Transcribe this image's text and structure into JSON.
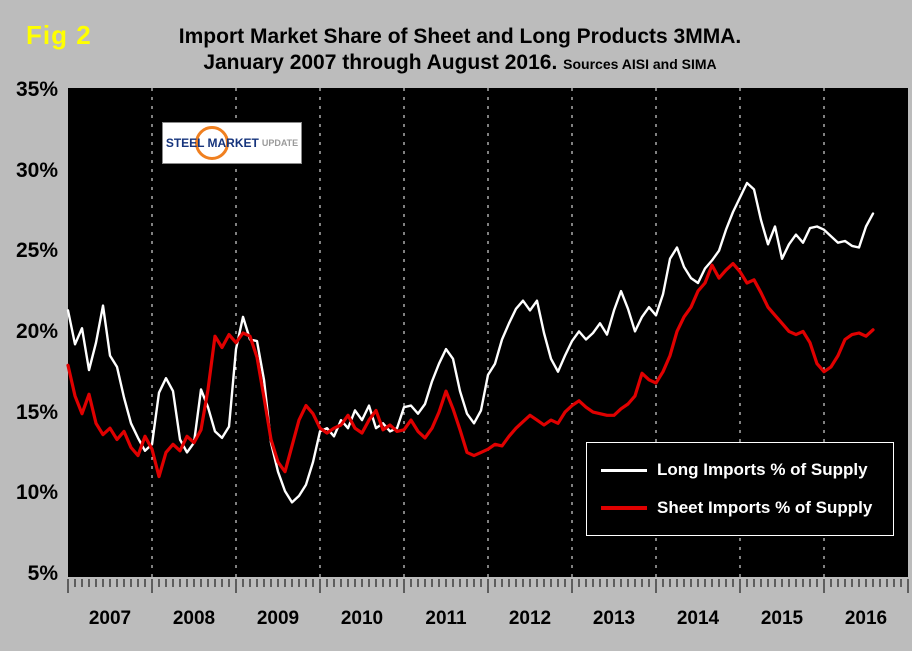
{
  "header": {
    "fig_label": "Fig 2",
    "title_line1": "Import Market Share of Sheet and Long Products 3MMA.",
    "title_line2": "January 2007 through August 2016.",
    "sources": "Sources AISI and SIMA"
  },
  "logo": {
    "word1": "STEEL",
    "word2": "MARKET",
    "word3": "UPDATE"
  },
  "legend": {
    "position": "inside-bottom-right",
    "items": [
      {
        "label": "Long Imports % of Supply",
        "color": "#ffffff"
      },
      {
        "label": "Sheet Imports % of Supply",
        "color": "#e00000"
      }
    ]
  },
  "chart_data": {
    "type": "line",
    "title": "Import Market Share of Sheet and Long Products 3MMA. January 2007 through August 2016. Sources AISI and SIMA",
    "x_unit": "month",
    "x_start": "2007-01",
    "x_end": "2016-08",
    "n_points": 116,
    "x_axis_months_total": 120,
    "x_tick_labels": [
      "2007",
      "2008",
      "2009",
      "2010",
      "2011",
      "2012",
      "2013",
      "2014",
      "2015",
      "2016"
    ],
    "y_ticks": [
      35,
      30,
      25,
      20,
      15,
      10,
      5
    ],
    "y_tick_suffix": "%",
    "ylim": [
      5,
      35
    ],
    "grid": "vertical-dashed-yearly",
    "plot_bg": "#000000",
    "page_bg": "#bcbcbc",
    "gridline_color": "#ffffff",
    "series": [
      {
        "id": "long-imports-line",
        "name": "Long Imports % of Supply",
        "color": "#ffffff",
        "stroke_width": 2.4,
        "values": [
          21.4,
          19.3,
          20.3,
          17.7,
          19.4,
          21.7,
          18.6,
          17.9,
          16.0,
          14.4,
          13.5,
          12.7,
          13.1,
          16.3,
          17.2,
          16.4,
          13.4,
          12.6,
          13.2,
          16.5,
          15.4,
          13.9,
          13.5,
          14.2,
          19.0,
          21.0,
          19.6,
          19.5,
          17.1,
          13.2,
          11.4,
          10.2,
          9.5,
          9.9,
          10.6,
          12.0,
          13.9,
          14.1,
          13.6,
          14.6,
          14.1,
          15.2,
          14.6,
          15.5,
          14.1,
          14.4,
          13.9,
          14.1,
          15.4,
          15.5,
          15.0,
          15.6,
          17.0,
          18.1,
          19.0,
          18.4,
          16.4,
          15.0,
          14.4,
          15.2,
          17.4,
          18.1,
          19.6,
          20.6,
          21.5,
          22.0,
          21.4,
          22.0,
          20.0,
          18.4,
          17.6,
          18.6,
          19.5,
          20.1,
          19.6,
          20.0,
          20.6,
          19.9,
          21.4,
          22.6,
          21.5,
          20.1,
          21.0,
          21.6,
          21.1,
          22.4,
          24.6,
          25.3,
          24.1,
          23.4,
          23.1,
          24.0,
          24.5,
          25.1,
          26.4,
          27.5,
          28.4,
          29.3,
          28.9,
          27.0,
          25.5,
          26.6,
          24.6,
          25.5,
          26.1,
          25.6,
          26.5,
          26.6,
          26.4,
          26.0,
          25.6,
          25.7,
          25.4,
          25.3,
          26.6,
          27.4
        ]
      },
      {
        "id": "sheet-imports-line",
        "name": "Sheet Imports % of Supply",
        "color": "#e00000",
        "stroke_width": 3.2,
        "values": [
          18.0,
          16.1,
          15.0,
          16.2,
          14.4,
          13.7,
          14.1,
          13.4,
          13.9,
          12.9,
          12.4,
          13.6,
          12.8,
          11.1,
          12.6,
          13.1,
          12.7,
          13.6,
          13.2,
          14.0,
          16.5,
          19.8,
          19.1,
          19.9,
          19.4,
          20.0,
          19.8,
          18.5,
          16.0,
          13.4,
          12.0,
          11.4,
          13.0,
          14.6,
          15.5,
          15.0,
          14.1,
          13.8,
          14.1,
          14.3,
          14.9,
          14.1,
          13.8,
          14.6,
          15.2,
          14.0,
          14.3,
          13.9,
          14.0,
          14.6,
          13.9,
          13.5,
          14.1,
          15.1,
          16.4,
          15.3,
          14.0,
          12.6,
          12.4,
          12.6,
          12.8,
          13.1,
          13.0,
          13.6,
          14.1,
          14.5,
          14.9,
          14.6,
          14.3,
          14.6,
          14.4,
          15.1,
          15.5,
          15.8,
          15.4,
          15.1,
          15.0,
          14.9,
          14.9,
          15.3,
          15.6,
          16.1,
          17.5,
          17.1,
          16.9,
          17.6,
          18.6,
          20.1,
          21.0,
          21.6,
          22.6,
          23.1,
          24.2,
          23.4,
          23.9,
          24.3,
          23.8,
          23.1,
          23.3,
          22.5,
          21.6,
          21.1,
          20.6,
          20.1,
          19.9,
          20.1,
          19.4,
          18.1,
          17.6,
          17.9,
          18.6,
          19.6,
          19.9,
          20.0,
          19.8,
          20.2
        ]
      }
    ]
  }
}
